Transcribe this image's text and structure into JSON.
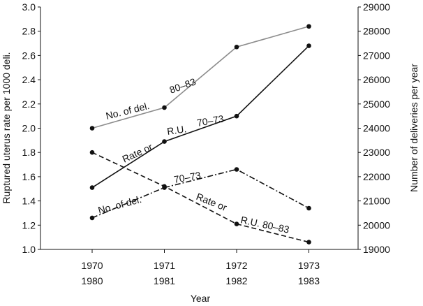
{
  "chart_data": {
    "type": "line",
    "title": "",
    "xlabel": "Year",
    "ylabel_left": "Ruptured uterus rate per 1000 deli.",
    "ylabel_right": "Number of deliveries per year",
    "x_ticks": [
      {
        "line1": "1970",
        "line2": "1980"
      },
      {
        "line1": "1971",
        "line2": "1981"
      },
      {
        "line1": "1972",
        "line2": "1982"
      },
      {
        "line1": "1973",
        "line2": "1983"
      }
    ],
    "y_left_ticks": [
      "1.0",
      "1.2",
      "1.4",
      "1.6",
      "1.8",
      "2.0",
      "2.2",
      "2.4",
      "2.6",
      "2.8",
      "3.0"
    ],
    "y_right_ticks": [
      "19000",
      "20000",
      "21000",
      "22000",
      "23000",
      "24000",
      "25000",
      "26000",
      "27000",
      "28000",
      "29000"
    ],
    "ylim_left": [
      1.0,
      3.0
    ],
    "ylim_right": [
      19000,
      29000
    ],
    "grid": false,
    "series": [
      {
        "key": "del_80_83",
        "axis": "right",
        "style": "solid",
        "color": "#8c8c8c",
        "values": [
          24000,
          24850,
          27350,
          28200
        ]
      },
      {
        "key": "ru_70_73",
        "axis": "left",
        "style": "solid",
        "color": "#111111",
        "values": [
          1.51,
          1.89,
          2.1,
          2.68
        ]
      },
      {
        "key": "ru_80_83",
        "axis": "left",
        "style": "dashed",
        "color": "#111111",
        "values": [
          1.8,
          1.52,
          1.21,
          1.06
        ]
      },
      {
        "key": "del_70_73",
        "axis": "right",
        "style": "dashdot",
        "color": "#111111",
        "values": [
          20300,
          21550,
          22300,
          20700
        ]
      }
    ],
    "annotations": [
      {
        "key": "del_80_83_a",
        "text": "No. of del."
      },
      {
        "key": "del_80_83_b",
        "text": "80–83"
      },
      {
        "key": "ru_70_73_a",
        "text": "Rate or"
      },
      {
        "key": "ru_70_73_b",
        "text": "R.U."
      },
      {
        "key": "ru_70_73_c",
        "text": "70–73"
      },
      {
        "key": "del_70_73_a",
        "text": "No. of del."
      },
      {
        "key": "del_70_73_b",
        "text": "70–73"
      },
      {
        "key": "ru_80_83_a",
        "text": "Rate or"
      },
      {
        "key": "ru_80_83_b",
        "text": "R.U. 80–83"
      }
    ]
  }
}
